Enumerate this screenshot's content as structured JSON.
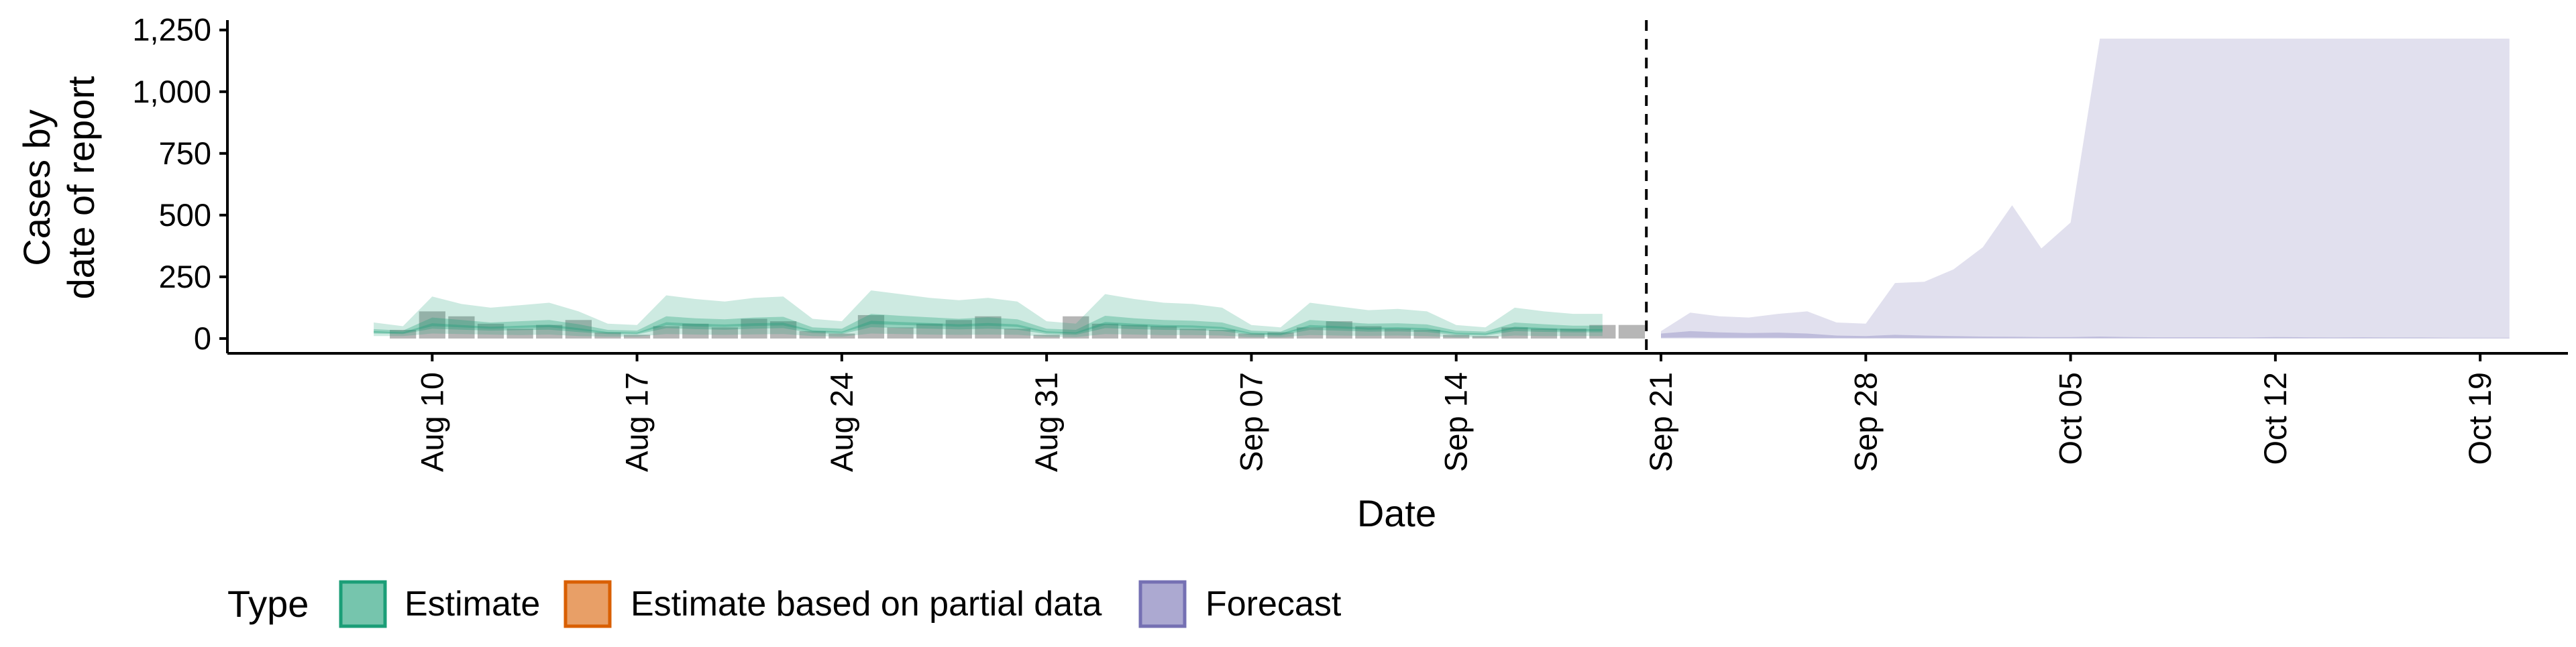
{
  "chart_data": {
    "type": "area",
    "xlabel": "Date",
    "ylabel_lines": [
      "Cases by",
      "date of report"
    ],
    "x_range": [
      "2020-08-03",
      "2020-10-22"
    ],
    "ylim": [
      -60,
      1290
    ],
    "y_ticks": [
      0,
      250,
      500,
      750,
      1000,
      1250
    ],
    "y_tick_labels": [
      "0",
      "250",
      "500",
      "750",
      "1,000",
      "1,250"
    ],
    "x_ticks": [
      "2020-08-10",
      "2020-08-17",
      "2020-08-24",
      "2020-08-31",
      "2020-09-07",
      "2020-09-14",
      "2020-09-21",
      "2020-09-28",
      "2020-10-05",
      "2020-10-12",
      "2020-10-19"
    ],
    "x_tick_labels": [
      "Aug 10",
      "Aug 17",
      "Aug 24",
      "Aug 31",
      "Sep 07",
      "Sep 14",
      "Sep 21",
      "Sep 28",
      "Oct 05",
      "Oct 12",
      "Oct 19"
    ],
    "forecast_start": "2020-09-20",
    "grid": false,
    "legend_placement": "bottom",
    "colors": {
      "estimate": "#1b9e77",
      "partial": "#d95f02",
      "forecast": "#7570b3",
      "observed": "#9e9e9e"
    },
    "observed_cases": {
      "dates": [
        "2020-08-09",
        "2020-08-10",
        "2020-08-11",
        "2020-08-12",
        "2020-08-13",
        "2020-08-14",
        "2020-08-15",
        "2020-08-16",
        "2020-08-17",
        "2020-08-18",
        "2020-08-19",
        "2020-08-20",
        "2020-08-21",
        "2020-08-22",
        "2020-08-23",
        "2020-08-24",
        "2020-08-25",
        "2020-08-26",
        "2020-08-27",
        "2020-08-28",
        "2020-08-29",
        "2020-08-30",
        "2020-08-31",
        "2020-09-01",
        "2020-09-02",
        "2020-09-03",
        "2020-09-04",
        "2020-09-05",
        "2020-09-06",
        "2020-09-07",
        "2020-09-08",
        "2020-09-09",
        "2020-09-10",
        "2020-09-11",
        "2020-09-12",
        "2020-09-13",
        "2020-09-14",
        "2020-09-15",
        "2020-09-16",
        "2020-09-17",
        "2020-09-18",
        "2020-09-19",
        "2020-09-20"
      ],
      "values": [
        35,
        110,
        90,
        60,
        40,
        55,
        75,
        25,
        15,
        50,
        60,
        45,
        80,
        70,
        30,
        20,
        95,
        45,
        60,
        75,
        90,
        40,
        15,
        90,
        60,
        55,
        50,
        40,
        35,
        20,
        25,
        45,
        70,
        50,
        40,
        35,
        15,
        10,
        45,
        40,
        40,
        55,
        55
      ]
    },
    "series": [
      {
        "name": "Estimate",
        "dates": [
          "2020-08-08",
          "2020-08-09",
          "2020-08-10",
          "2020-08-11",
          "2020-08-12",
          "2020-08-13",
          "2020-08-14",
          "2020-08-15",
          "2020-08-16",
          "2020-08-17",
          "2020-08-18",
          "2020-08-19",
          "2020-08-20",
          "2020-08-21",
          "2020-08-22",
          "2020-08-23",
          "2020-08-24",
          "2020-08-25",
          "2020-08-26",
          "2020-08-27",
          "2020-08-28",
          "2020-08-29",
          "2020-08-30",
          "2020-08-31",
          "2020-09-01",
          "2020-09-02",
          "2020-09-03",
          "2020-09-04",
          "2020-09-05",
          "2020-09-06",
          "2020-09-07",
          "2020-09-08",
          "2020-09-09",
          "2020-09-10",
          "2020-09-11",
          "2020-09-12",
          "2020-09-13",
          "2020-09-14",
          "2020-09-15",
          "2020-09-16",
          "2020-09-17",
          "2020-09-18",
          "2020-09-19"
        ],
        "upper_90": [
          65,
          50,
          170,
          140,
          125,
          135,
          145,
          110,
          60,
          55,
          175,
          160,
          150,
          165,
          170,
          80,
          70,
          195,
          180,
          165,
          155,
          165,
          150,
          70,
          60,
          180,
          160,
          145,
          140,
          125,
          55,
          45,
          145,
          130,
          115,
          120,
          110,
          55,
          45,
          125,
          110,
          100,
          100
        ],
        "lower_90": [
          10,
          10,
          20,
          18,
          16,
          14,
          16,
          10,
          8,
          8,
          18,
          16,
          15,
          17,
          18,
          10,
          8,
          20,
          18,
          16,
          15,
          16,
          15,
          8,
          6,
          18,
          16,
          14,
          14,
          12,
          6,
          5,
          14,
          12,
          11,
          12,
          10,
          5,
          4,
          12,
          10,
          10,
          10
        ],
        "upper_50": [
          38,
          32,
          85,
          75,
          65,
          70,
          75,
          58,
          35,
          32,
          90,
          82,
          78,
          85,
          88,
          45,
          40,
          100,
          92,
          86,
          80,
          86,
          78,
          40,
          35,
          92,
          82,
          75,
          72,
          65,
          32,
          28,
          75,
          68,
          60,
          62,
          57,
          32,
          28,
          65,
          58,
          52,
          52
        ],
        "lower_50": [
          20,
          18,
          40,
          36,
          32,
          34,
          36,
          26,
          18,
          17,
          42,
          38,
          36,
          40,
          42,
          22,
          18,
          46,
          42,
          40,
          37,
          40,
          36,
          18,
          15,
          42,
          38,
          35,
          34,
          30,
          14,
          12,
          35,
          32,
          28,
          29,
          26,
          14,
          12,
          30,
          27,
          25,
          25
        ],
        "upper_20": [
          30,
          25,
          62,
          55,
          48,
          52,
          56,
          42,
          26,
          24,
          66,
          60,
          57,
          62,
          64,
          33,
          28,
          72,
          67,
          63,
          58,
          63,
          57,
          29,
          25,
          67,
          60,
          55,
          53,
          47,
          23,
          20,
          55,
          50,
          44,
          46,
          42,
          23,
          20,
          48,
          43,
          38,
          38
        ],
        "lower_20": [
          24,
          21,
          50,
          45,
          40,
          43,
          46,
          34,
          22,
          20,
          54,
          49,
          47,
          51,
          53,
          28,
          23,
          59,
          55,
          52,
          48,
          52,
          47,
          24,
          20,
          55,
          49,
          45,
          44,
          39,
          19,
          16,
          45,
          41,
          36,
          38,
          34,
          19,
          16,
          39,
          35,
          31,
          31
        ]
      },
      {
        "name": "Estimate based on partial data",
        "dates": [],
        "upper_90": [],
        "lower_90": []
      },
      {
        "name": "Forecast",
        "dates": [
          "2020-09-21",
          "2020-09-22",
          "2020-09-23",
          "2020-09-24",
          "2020-09-25",
          "2020-09-26",
          "2020-09-27",
          "2020-09-28",
          "2020-09-29",
          "2020-09-30",
          "2020-10-01",
          "2020-10-02",
          "2020-10-03",
          "2020-10-04",
          "2020-10-05",
          "2020-10-06",
          "2020-10-07",
          "2020-10-08",
          "2020-10-09",
          "2020-10-10",
          "2020-10-11",
          "2020-10-12",
          "2020-10-13",
          "2020-10-14",
          "2020-10-15",
          "2020-10-16",
          "2020-10-17",
          "2020-10-18",
          "2020-10-19",
          "2020-10-20"
        ],
        "upper_90": [
          30,
          105,
          90,
          85,
          100,
          110,
          65,
          60,
          225,
          230,
          280,
          370,
          540,
          365,
          470,
          1215,
          1215,
          1215,
          1215,
          1215,
          1215,
          1215,
          1215,
          1215,
          1215,
          1215,
          1215,
          1215,
          1215,
          1215
        ],
        "lower_90": [
          0,
          0,
          0,
          0,
          0,
          0,
          0,
          0,
          0,
          0,
          0,
          0,
          0,
          0,
          0,
          0,
          0,
          0,
          0,
          0,
          0,
          0,
          0,
          0,
          0,
          0,
          0,
          0,
          0,
          0
        ],
        "upper_50": [
          20,
          30,
          25,
          22,
          24,
          20,
          12,
          10,
          15,
          12,
          10,
          8,
          7,
          6,
          6,
          8,
          6,
          5,
          5,
          5,
          4,
          6,
          5,
          4,
          5,
          4,
          4,
          3,
          3,
          3
        ],
        "lower_50": [
          3,
          4,
          3,
          3,
          3,
          2,
          2,
          1,
          2,
          1,
          1,
          1,
          1,
          1,
          1,
          1,
          1,
          1,
          1,
          1,
          1,
          1,
          1,
          1,
          1,
          1,
          1,
          1,
          1,
          1
        ]
      }
    ]
  },
  "legend": {
    "title": "Type",
    "items": [
      {
        "label": "Estimate",
        "color": "#1b9e77"
      },
      {
        "label": "Estimate based on partial data",
        "color": "#d95f02"
      },
      {
        "label": "Forecast",
        "color": "#7570b3"
      }
    ]
  }
}
